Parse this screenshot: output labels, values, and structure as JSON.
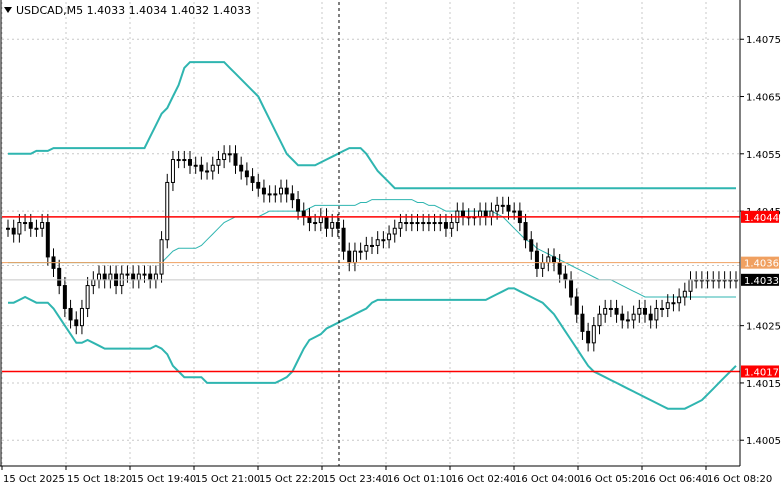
{
  "header": {
    "menu_icon": "triangle-down-icon",
    "symbol_info": "USDCAD,M5  1.4033 1.4034 1.4032 1.4033"
  },
  "colors": {
    "background": "#ffffff",
    "grid": "#c8c8c8",
    "axis": "#000000",
    "candle": "#000000",
    "bollinger": "#2fb5b0",
    "horizontal_line": "#ff0000",
    "current_price_line": "#f0a060",
    "price_label_red": "#ff0000",
    "price_label_orange": "#f0a060",
    "price_label_current": "#000000"
  },
  "chart_data": {
    "type": "candlestick",
    "symbol": "USDCAD",
    "timeframe": "M5",
    "ylim": [
      1.40005,
      1.40815
    ],
    "y_ticks": [
      "1.4075",
      "1.4065",
      "1.4055",
      "1.4045",
      "1.4025",
      "1.4015",
      "1.4005"
    ],
    "x_ticks": [
      "15 Oct 2025",
      "15 Oct 18:20",
      "15 Oct 19:40",
      "15 Oct 21:00",
      "15 Oct 22:20",
      "15 Oct 23:40",
      "16 Oct 01:10",
      "16 Oct 02:40",
      "16 Oct 04:00",
      "16 Oct 05:20",
      "16 Oct 06:40",
      "16 Oct 08:20"
    ],
    "grid": true,
    "price_lines": [
      {
        "label": "1.4044",
        "value": 1.4044,
        "style": "red-horizontal"
      },
      {
        "label": "1.4036",
        "value": 1.4036,
        "style": "orange-label"
      },
      {
        "label": "1.4033",
        "value": 1.4033,
        "style": "current-price"
      },
      {
        "label": "1.4017",
        "value": 1.4017,
        "style": "red-horizontal"
      }
    ],
    "cursor_time": "15 Oct 23:40",
    "closes": [
      1.4042,
      1.4041,
      1.4043,
      1.4043,
      1.4042,
      1.4042,
      1.4043,
      1.4037,
      1.4035,
      1.4032,
      1.4028,
      1.4026,
      1.4025,
      1.4028,
      1.4032,
      1.4033,
      1.4034,
      1.4033,
      1.4034,
      1.4032,
      1.4034,
      1.4034,
      1.4033,
      1.4034,
      1.4034,
      1.4033,
      1.4034,
      1.404,
      1.405,
      1.4054,
      1.4054,
      1.4054,
      1.4053,
      1.4053,
      1.4052,
      1.4052,
      1.4053,
      1.4054,
      1.4055,
      1.4055,
      1.4053,
      1.4052,
      1.4051,
      1.405,
      1.4049,
      1.4048,
      1.4048,
      1.4048,
      1.4049,
      1.4048,
      1.4047,
      1.4045,
      1.4044,
      1.4043,
      1.4043,
      1.4044,
      1.4042,
      1.4043,
      1.4042,
      1.4038,
      1.4036,
      1.4038,
      1.4038,
      1.4039,
      1.4039,
      1.404,
      1.404,
      1.4041,
      1.4042,
      1.4043,
      1.4043,
      1.4043,
      1.4043,
      1.4043,
      1.4043,
      1.4043,
      1.4043,
      1.4042,
      1.4043,
      1.4045,
      1.4044,
      1.4044,
      1.4044,
      1.4045,
      1.4044,
      1.4045,
      1.4046,
      1.4046,
      1.4045,
      1.4045,
      1.4043,
      1.404,
      1.4038,
      1.4035,
      1.4036,
      1.4037,
      1.4036,
      1.4034,
      1.4033,
      1.403,
      1.4027,
      1.4024,
      1.4022,
      1.4025,
      1.4027,
      1.4028,
      1.4028,
      1.4027,
      1.4026,
      1.4026,
      1.4027,
      1.4028,
      1.4027,
      1.4026,
      1.4028,
      1.4028,
      1.4029,
      1.4029,
      1.403,
      1.4031,
      1.4033,
      1.4033,
      1.4033,
      1.4033,
      1.4033,
      1.4033,
      1.4033,
      1.4033,
      1.4033
    ],
    "series": [
      {
        "values": [
          1.4029,
          1.4029,
          1.40295,
          1.403,
          1.40295,
          1.4029,
          1.4029,
          1.4029,
          1.4028,
          1.40265,
          1.4025,
          1.40235,
          1.4022,
          1.4022,
          1.40225,
          1.4022,
          1.40215,
          1.4021,
          1.4021,
          1.4021,
          1.4021,
          1.4021,
          1.4021,
          1.4021,
          1.4021,
          1.4021,
          1.40215,
          1.4021,
          1.402,
          1.4018,
          1.4017,
          1.4016,
          1.4016,
          1.4016,
          1.4016,
          1.4015,
          1.4015,
          1.4015,
          1.4015,
          1.4015,
          1.4015,
          1.4015,
          1.4015,
          1.4015,
          1.4015,
          1.4015,
          1.4015,
          1.4015,
          1.40155,
          1.4016,
          1.4017,
          1.4019,
          1.4021,
          1.40225,
          1.4023,
          1.40235,
          1.40245,
          1.4025,
          1.40255,
          1.4026,
          1.40265,
          1.4027,
          1.40275,
          1.4028,
          1.4029,
          1.40295,
          1.40295,
          1.40295,
          1.40295,
          1.40295,
          1.40295,
          1.40295,
          1.40295,
          1.40295,
          1.40295,
          1.40295,
          1.40295,
          1.40295,
          1.40295,
          1.40295,
          1.40295,
          1.40295,
          1.40295,
          1.40295,
          1.40295,
          1.403,
          1.40305,
          1.4031,
          1.40315,
          1.40315,
          1.4031,
          1.40305,
          1.403,
          1.40295,
          1.4029,
          1.4028,
          1.4027,
          1.40255,
          1.4024,
          1.40225,
          1.4021,
          1.40195,
          1.4018,
          1.4017,
          1.40165,
          1.4016,
          1.40155,
          1.4015,
          1.40145,
          1.4014,
          1.40135,
          1.4013,
          1.40125,
          1.4012,
          1.40115,
          1.4011,
          1.40105,
          1.40105,
          1.40105,
          1.40105,
          1.4011,
          1.40115,
          1.4012,
          1.4013,
          1.4014,
          1.4015,
          1.4016,
          1.4017,
          1.4018
        ]
      },
      {
        "values": [
          1.4036,
          1.4036,
          1.4036,
          1.4036,
          1.4036,
          1.4036,
          1.4036,
          1.4036,
          1.4036,
          1.4036,
          1.4036,
          1.4036,
          1.4036,
          1.4036,
          1.4036,
          1.4036,
          1.4036,
          1.4036,
          1.4036,
          1.4036,
          1.4036,
          1.4036,
          1.4036,
          1.4036,
          1.4036,
          1.4036,
          1.4036,
          1.4036,
          1.4037,
          1.4038,
          1.40385,
          1.40385,
          1.40385,
          1.40385,
          1.4039,
          1.404,
          1.4041,
          1.4042,
          1.4043,
          1.40435,
          1.4044,
          1.4044,
          1.4044,
          1.4044,
          1.4044,
          1.40445,
          1.4045,
          1.4045,
          1.4045,
          1.4045,
          1.4045,
          1.4045,
          1.4045,
          1.40455,
          1.4046,
          1.4046,
          1.4046,
          1.4046,
          1.4046,
          1.4046,
          1.4046,
          1.4046,
          1.40465,
          1.40465,
          1.4047,
          1.4047,
          1.4047,
          1.4047,
          1.4047,
          1.4047,
          1.4047,
          1.4047,
          1.40465,
          1.40465,
          1.4046,
          1.4046,
          1.40455,
          1.4045,
          1.4045,
          1.4045,
          1.4045,
          1.4045,
          1.4045,
          1.4045,
          1.4045,
          1.4045,
          1.40445,
          1.4044,
          1.4043,
          1.4042,
          1.4041,
          1.404,
          1.40395,
          1.40385,
          1.4038,
          1.40375,
          1.4037,
          1.40365,
          1.4036,
          1.40355,
          1.4035,
          1.40345,
          1.4034,
          1.40335,
          1.4033,
          1.4033,
          1.4033,
          1.40325,
          1.4032,
          1.40315,
          1.4031,
          1.40305,
          1.403,
          1.403,
          1.403,
          1.403,
          1.403,
          1.403,
          1.403,
          1.403,
          1.403,
          1.403,
          1.403,
          1.403,
          1.403,
          1.403,
          1.403,
          1.403,
          1.403
        ]
      },
      {
        "values": [
          1.4055,
          1.4055,
          1.4055,
          1.4055,
          1.4055,
          1.40555,
          1.40555,
          1.40555,
          1.4056,
          1.4056,
          1.4056,
          1.4056,
          1.4056,
          1.4056,
          1.4056,
          1.4056,
          1.4056,
          1.4056,
          1.4056,
          1.4056,
          1.4056,
          1.4056,
          1.4056,
          1.4056,
          1.4056,
          1.4058,
          1.406,
          1.4062,
          1.4063,
          1.4065,
          1.4067,
          1.407,
          1.4071,
          1.4071,
          1.4071,
          1.4071,
          1.4071,
          1.4071,
          1.4071,
          1.407,
          1.4069,
          1.4068,
          1.4067,
          1.4066,
          1.4065,
          1.4063,
          1.4061,
          1.4059,
          1.4057,
          1.4055,
          1.4054,
          1.4053,
          1.4053,
          1.4053,
          1.4053,
          1.40535,
          1.4054,
          1.40545,
          1.4055,
          1.40555,
          1.4056,
          1.4056,
          1.4056,
          1.4055,
          1.40535,
          1.4052,
          1.4051,
          1.405,
          1.4049,
          1.4049,
          1.4049,
          1.4049,
          1.4049,
          1.4049,
          1.4049,
          1.4049,
          1.4049,
          1.4049,
          1.4049,
          1.4049,
          1.4049,
          1.4049,
          1.4049,
          1.4049,
          1.4049,
          1.4049,
          1.4049,
          1.4049,
          1.4049,
          1.4049,
          1.4049,
          1.4049,
          1.4049,
          1.4049,
          1.4049,
          1.4049,
          1.4049,
          1.4049,
          1.4049,
          1.4049,
          1.4049,
          1.4049,
          1.4049,
          1.4049,
          1.4049,
          1.4049,
          1.4049,
          1.4049,
          1.4049,
          1.4049,
          1.4049,
          1.4049,
          1.4049,
          1.4049,
          1.4049,
          1.4049,
          1.4049,
          1.4049,
          1.4049,
          1.4049,
          1.4049,
          1.4049,
          1.4049,
          1.4049,
          1.4049,
          1.4049,
          1.4049,
          1.4049,
          1.4049
        ]
      }
    ]
  }
}
